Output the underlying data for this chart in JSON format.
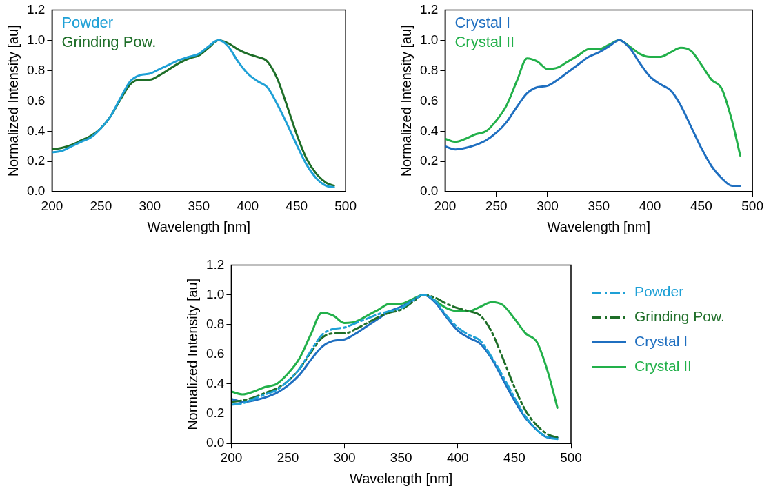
{
  "chart_data": [
    {
      "type": "line",
      "xlabel": "Wavelength [nm]",
      "ylabel": "Normalized Intensity [au]",
      "xlim": [
        200,
        500
      ],
      "xticks": [
        200,
        250,
        300,
        350,
        400,
        450,
        500
      ],
      "ylim": [
        0,
        1.2
      ],
      "yticks": [
        {
          "value": 0,
          "label": "0.0"
        },
        {
          "value": 0.2,
          "label": "0.2"
        },
        {
          "value": 0.4,
          "label": "0.4"
        },
        {
          "value": 0.6,
          "label": "0.6"
        },
        {
          "value": 0.8,
          "label": "0.8"
        },
        {
          "value": 1,
          "label": "1.0"
        },
        {
          "value": 1.2,
          "label": "1.2"
        }
      ],
      "legend": "top left",
      "marker": "none",
      "line_style": "solid",
      "x": [
        200,
        210,
        220,
        230,
        240,
        250,
        260,
        270,
        280,
        290,
        300,
        310,
        320,
        330,
        340,
        350,
        360,
        370,
        380,
        390,
        400,
        410,
        420,
        430,
        440,
        450,
        460,
        470,
        480,
        488
      ],
      "series": [
        {
          "name": "Powder",
          "color": "#1ea0d6",
          "values": [
            0.26,
            0.27,
            0.3,
            0.33,
            0.36,
            0.42,
            0.5,
            0.62,
            0.73,
            0.77,
            0.78,
            0.81,
            0.84,
            0.87,
            0.89,
            0.91,
            0.96,
            1.0,
            0.96,
            0.86,
            0.78,
            0.73,
            0.69,
            0.58,
            0.45,
            0.31,
            0.18,
            0.09,
            0.04,
            0.03
          ]
        },
        {
          "name": "Grinding Pow.",
          "color": "#1e6e28",
          "values": [
            0.28,
            0.29,
            0.31,
            0.34,
            0.37,
            0.42,
            0.5,
            0.61,
            0.71,
            0.74,
            0.74,
            0.77,
            0.81,
            0.85,
            0.88,
            0.9,
            0.95,
            1.0,
            0.98,
            0.94,
            0.91,
            0.89,
            0.86,
            0.75,
            0.57,
            0.38,
            0.22,
            0.12,
            0.06,
            0.04
          ]
        }
      ]
    },
    {
      "type": "line",
      "xlabel": "Wavelength [nm]",
      "ylabel": "Normalized Intensity [au]",
      "xlim": [
        200,
        500
      ],
      "xticks": [
        200,
        250,
        300,
        350,
        400,
        450,
        500
      ],
      "ylim": [
        0,
        1.2
      ],
      "yticks": [
        {
          "value": 0,
          "label": "0.0"
        },
        {
          "value": 0.2,
          "label": "0.2"
        },
        {
          "value": 0.4,
          "label": "0.4"
        },
        {
          "value": 0.6,
          "label": "0.6"
        },
        {
          "value": 0.8,
          "label": "0.8"
        },
        {
          "value": 1,
          "label": "1.0"
        },
        {
          "value": 1.2,
          "label": "1.2"
        }
      ],
      "legend": "top left",
      "marker": "none",
      "line_style": "solid",
      "x": [
        200,
        210,
        220,
        230,
        240,
        250,
        260,
        270,
        280,
        290,
        300,
        310,
        320,
        330,
        340,
        350,
        360,
        370,
        380,
        390,
        400,
        410,
        420,
        430,
        440,
        450,
        460,
        470,
        480,
        488
      ],
      "series": [
        {
          "name": "Crystal I",
          "color": "#1f6fc0",
          "values": [
            0.3,
            0.28,
            0.29,
            0.31,
            0.34,
            0.39,
            0.46,
            0.56,
            0.65,
            0.69,
            0.7,
            0.74,
            0.79,
            0.84,
            0.89,
            0.92,
            0.96,
            1.0,
            0.95,
            0.85,
            0.76,
            0.71,
            0.67,
            0.57,
            0.43,
            0.29,
            0.17,
            0.09,
            0.04,
            0.04
          ]
        },
        {
          "name": "Crystal II",
          "color": "#22b04a",
          "values": [
            0.35,
            0.33,
            0.35,
            0.38,
            0.4,
            0.47,
            0.57,
            0.73,
            0.88,
            0.86,
            0.81,
            0.82,
            0.86,
            0.9,
            0.94,
            0.94,
            0.97,
            1.0,
            0.96,
            0.91,
            0.89,
            0.89,
            0.92,
            0.95,
            0.93,
            0.84,
            0.74,
            0.68,
            0.47,
            0.24
          ]
        }
      ]
    },
    {
      "type": "line",
      "xlabel": "Wavelength [nm]",
      "ylabel": "Normalized Intensity [au]",
      "xlim": [
        200,
        500
      ],
      "xticks": [
        200,
        250,
        300,
        350,
        400,
        450,
        500
      ],
      "ylim": [
        0,
        1.2
      ],
      "yticks": [
        {
          "value": 0,
          "label": "0.0"
        },
        {
          "value": 0.2,
          "label": "0.2"
        },
        {
          "value": 0.4,
          "label": "0.4"
        },
        {
          "value": 0.6,
          "label": "0.6"
        },
        {
          "value": 0.8,
          "label": "0.8"
        },
        {
          "value": 1,
          "label": "1.0"
        },
        {
          "value": 1.2,
          "label": "1.2"
        }
      ],
      "legend": "right",
      "marker": "none",
      "x": [
        200,
        210,
        220,
        230,
        240,
        250,
        260,
        270,
        280,
        290,
        300,
        310,
        320,
        330,
        340,
        350,
        360,
        370,
        380,
        390,
        400,
        410,
        420,
        430,
        440,
        450,
        460,
        470,
        480,
        488
      ],
      "series": [
        {
          "name": "Powder",
          "color": "#1ea0d6",
          "line_style": "dashed",
          "values": [
            0.26,
            0.27,
            0.3,
            0.33,
            0.36,
            0.42,
            0.5,
            0.62,
            0.73,
            0.77,
            0.78,
            0.81,
            0.84,
            0.87,
            0.89,
            0.91,
            0.96,
            1.0,
            0.96,
            0.86,
            0.78,
            0.73,
            0.69,
            0.58,
            0.45,
            0.31,
            0.18,
            0.09,
            0.04,
            0.03
          ]
        },
        {
          "name": "Grinding Pow.",
          "color": "#1e6e28",
          "line_style": "dashed",
          "values": [
            0.28,
            0.29,
            0.31,
            0.34,
            0.37,
            0.42,
            0.5,
            0.61,
            0.71,
            0.74,
            0.74,
            0.77,
            0.81,
            0.85,
            0.88,
            0.9,
            0.95,
            1.0,
            0.98,
            0.94,
            0.91,
            0.89,
            0.86,
            0.75,
            0.57,
            0.38,
            0.22,
            0.12,
            0.06,
            0.04
          ]
        },
        {
          "name": "Crystal I",
          "color": "#1f6fc0",
          "line_style": "solid",
          "values": [
            0.3,
            0.28,
            0.29,
            0.31,
            0.34,
            0.39,
            0.46,
            0.56,
            0.65,
            0.69,
            0.7,
            0.74,
            0.79,
            0.84,
            0.89,
            0.92,
            0.96,
            1.0,
            0.95,
            0.85,
            0.76,
            0.71,
            0.67,
            0.57,
            0.43,
            0.29,
            0.17,
            0.09,
            0.04,
            0.04
          ]
        },
        {
          "name": "Crystal II",
          "color": "#22b04a",
          "line_style": "solid",
          "values": [
            0.35,
            0.33,
            0.35,
            0.38,
            0.4,
            0.47,
            0.57,
            0.73,
            0.88,
            0.86,
            0.81,
            0.82,
            0.86,
            0.9,
            0.94,
            0.94,
            0.97,
            1.0,
            0.96,
            0.91,
            0.89,
            0.89,
            0.92,
            0.95,
            0.93,
            0.84,
            0.74,
            0.68,
            0.47,
            0.24
          ]
        }
      ]
    }
  ]
}
